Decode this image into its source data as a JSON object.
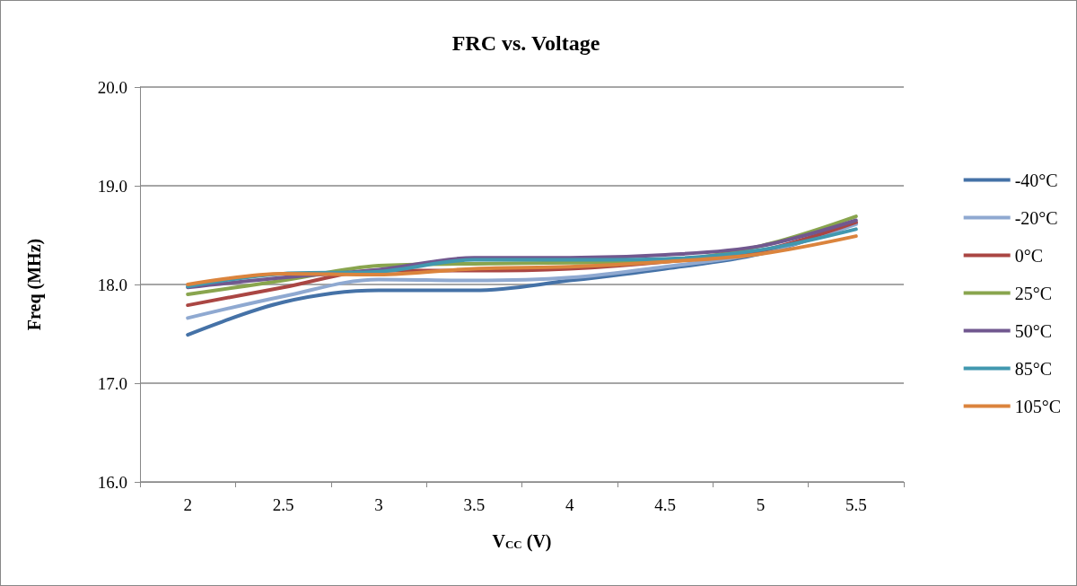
{
  "chart_data": {
    "type": "line",
    "title": "FRC vs. Voltage",
    "xlabel": "V$_{CC}$ (V)",
    "ylabel": "Freq (MHz)",
    "categories": [
      "2",
      "2.5",
      "3",
      "3.5",
      "4",
      "4.5",
      "5",
      "5.5"
    ],
    "ylim": [
      16,
      20
    ],
    "yticks": [
      {
        "value": 16,
        "label": "16.0"
      },
      {
        "value": 17,
        "label": "17.0"
      },
      {
        "value": 18,
        "label": "18.0"
      },
      {
        "value": 19,
        "label": "19.0"
      },
      {
        "value": 20,
        "label": "20.0"
      }
    ],
    "grid": "y",
    "legend": "right",
    "marker": "none",
    "line_style": "solid",
    "series": [
      {
        "name": "-40°C",
        "color": "#4572a7",
        "values": [
          17.49,
          17.82,
          17.94,
          17.94,
          18.04,
          18.16,
          18.31,
          18.62
        ]
      },
      {
        "name": "-20°C",
        "color": "#8fa9d1",
        "values": [
          17.66,
          17.88,
          18.05,
          18.04,
          18.07,
          18.18,
          18.32,
          18.61
        ]
      },
      {
        "name": "0°C",
        "color": "#aa4643",
        "values": [
          17.79,
          17.97,
          18.14,
          18.14,
          18.16,
          18.23,
          18.34,
          18.63
        ]
      },
      {
        "name": "25°C",
        "color": "#89a54e",
        "values": [
          17.9,
          18.04,
          18.19,
          18.21,
          18.22,
          18.24,
          18.39,
          18.69
        ]
      },
      {
        "name": "50°C",
        "color": "#71588f",
        "values": [
          17.97,
          18.07,
          18.15,
          18.27,
          18.27,
          18.3,
          18.39,
          18.65
        ]
      },
      {
        "name": "85°C",
        "color": "#4198af",
        "values": [
          17.98,
          18.11,
          18.13,
          18.25,
          18.25,
          18.26,
          18.35,
          18.56
        ]
      },
      {
        "name": "105°C",
        "color": "#db843d",
        "values": [
          18.0,
          18.11,
          18.1,
          18.16,
          18.18,
          18.23,
          18.31,
          18.49
        ]
      }
    ]
  }
}
